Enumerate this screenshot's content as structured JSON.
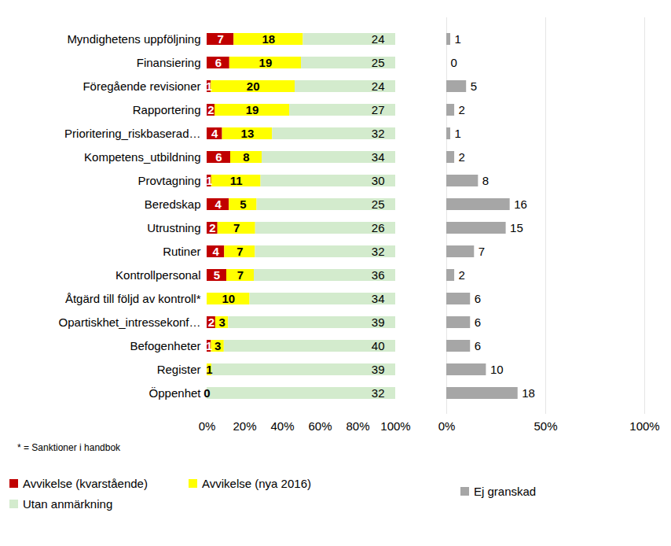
{
  "chart_data": [
    {
      "type": "bar",
      "orientation": "horizontal",
      "stacked": true,
      "data_labels": true,
      "categories": [
        "Myndighetens uppföljning",
        "Finansiering",
        "Föregående revisioner",
        "Rapportering",
        "Prioritering_riskbaserad…",
        "Kompetens_utbildning",
        "Provtagning",
        "Beredskap",
        "Utrustning",
        "Rutiner",
        "Kontrollpersonal",
        "Åtgärd till följd av kontroll*",
        "Opartiskhet_intressekonf…",
        "Befogenheter",
        "Register",
        "Öppenhet"
      ],
      "series": [
        {
          "name": "Avvikelse (kvarstående)",
          "color": "#c00000",
          "values": [
            7,
            6,
            1,
            2,
            4,
            6,
            1,
            4,
            2,
            4,
            5,
            0,
            2,
            1,
            0,
            0
          ],
          "value_labels": [
            "7",
            "6",
            "1",
            "2",
            "4",
            "6",
            "1",
            "4",
            "2",
            "4",
            "5",
            null,
            "2",
            "1",
            null,
            null
          ]
        },
        {
          "name": "Avvikelse (nya 2016)",
          "color": "#ffff00",
          "values": [
            18,
            19,
            20,
            19,
            13,
            8,
            11,
            5,
            7,
            7,
            7,
            10,
            3,
            3,
            1,
            0
          ]
        },
        {
          "name": "Utan anmärkning",
          "color": "#d3ebcd",
          "values": [
            24,
            25,
            24,
            27,
            32,
            34,
            30,
            25,
            26,
            32,
            36,
            34,
            39,
            40,
            39,
            32
          ]
        }
      ],
      "xlim": [
        0,
        100
      ],
      "xticks": [
        {
          "value": 0,
          "label": "0%"
        },
        {
          "value": 20,
          "label": "20%"
        },
        {
          "value": 40,
          "label": "40%"
        },
        {
          "value": 60,
          "label": "60%"
        },
        {
          "value": 80,
          "label": "80%"
        },
        {
          "value": 100,
          "label": "100%"
        }
      ],
      "annotations": [
        "* = Sanktioner i handbok"
      ]
    },
    {
      "type": "bar",
      "orientation": "horizontal",
      "data_labels": true,
      "grid": true,
      "tick_labels": "x",
      "categories": [
        "Myndighetens uppföljning",
        "Finansiering",
        "Föregående revisioner",
        "Rapportering",
        "Prioritering_riskbaserad…",
        "Kompetens_utbildning",
        "Provtagning",
        "Beredskap",
        "Utrustning",
        "Rutiner",
        "Kontrollpersonal",
        "Åtgärd till följd av kontroll*",
        "Opartiskhet_intressekonf…",
        "Befogenheter",
        "Register",
        "Öppenhet"
      ],
      "series": [
        {
          "name": "Ej granskad",
          "color": "#a6a6a6",
          "values": [
            1,
            0,
            5,
            2,
            1,
            2,
            8,
            16,
            15,
            7,
            2,
            6,
            6,
            6,
            10,
            18
          ]
        }
      ],
      "xlim": [
        0,
        100
      ],
      "xticks": [
        {
          "value": 0,
          "label": "0%"
        },
        {
          "value": 50,
          "label": "50%"
        },
        {
          "value": 100,
          "label": "100%"
        }
      ]
    }
  ]
}
